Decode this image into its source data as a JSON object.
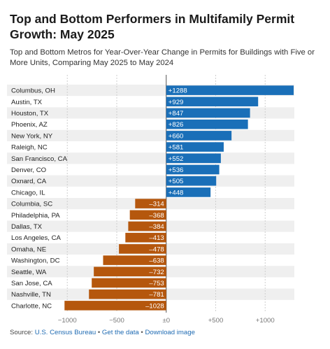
{
  "title": "Top and Bottom Performers in Multifamily Permit Growth: May 2025",
  "subtitle": "Top and Bottom Metros for Year-Over-Year Change in Permits for Buildings with Five or More Units, Comparing May 2025 to May 2024",
  "footer": {
    "source_prefix": "Source:",
    "source_link": "U.S. Census Bureau",
    "separator": "•",
    "get_data": "Get the data",
    "download": "Download image"
  },
  "colors": {
    "positive": "#1a6fb8",
    "negative": "#b5570d",
    "row_band": "#efefef",
    "grid": "#cfcfcf",
    "zero_line": "#555555"
  },
  "chart_data": {
    "type": "bar",
    "orientation": "horizontal",
    "categories": [
      "Columbus, OH",
      "Austin, TX",
      "Houston, TX",
      "Phoenix, AZ",
      "New York, NY",
      "Raleigh, NC",
      "San Francisco, CA",
      "Denver, CO",
      "Oxnard, CA",
      "Chicago, IL",
      "Columbia, SC",
      "Philadelphia, PA",
      "Dallas, TX",
      "Los Angeles, CA",
      "Omaha, NE",
      "Washington, DC",
      "Seattle, WA",
      "San Jose, CA",
      "Nashville, TN",
      "Charlotte, NC"
    ],
    "values": [
      1288,
      929,
      847,
      826,
      660,
      581,
      552,
      536,
      505,
      448,
      -314,
      -368,
      -384,
      -413,
      -478,
      -638,
      -732,
      -753,
      -781,
      -1028
    ],
    "value_labels": [
      "+1288",
      "+929",
      "+847",
      "+826",
      "+660",
      "+581",
      "+552",
      "+536",
      "+505",
      "+448",
      "–314",
      "–368",
      "–384",
      "–413",
      "–478",
      "–638",
      "–732",
      "–753",
      "–781",
      "–1028"
    ],
    "ticks": [
      -1000,
      -500,
      0,
      500,
      1000
    ],
    "tick_labels": [
      "−1000",
      "−500",
      "±0",
      "+500",
      "+1000"
    ],
    "xlim": [
      -1030,
      1295
    ],
    "grid": true
  }
}
